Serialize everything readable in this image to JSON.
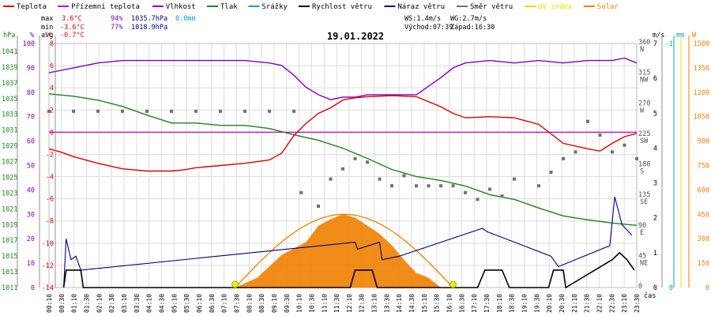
{
  "chart_data": {
    "type": "line",
    "title": "19.01.2022",
    "legend": [
      {
        "label": "Teplota",
        "color": "#e00000"
      },
      {
        "label": "Přízemní teplota",
        "color": "#c000c0"
      },
      {
        "label": "Vlhkost",
        "color": "#8000c0"
      },
      {
        "label": "Tlak",
        "color": "#208020"
      },
      {
        "label": "Srážky",
        "color": "#00a0d0"
      },
      {
        "label": "Rychlost větru",
        "color": "#000000"
      },
      {
        "label": "Náraz větru",
        "color": "#000080"
      },
      {
        "label": "Směr větru",
        "color": "#707070"
      },
      {
        "label": "UV index",
        "color": "#e0e000"
      },
      {
        "label": "Solar",
        "color": "#f08000"
      }
    ],
    "stats": {
      "max_label": "max",
      "max_temp": "3.6°C",
      "max_hum": "94%",
      "max_press": "1035.7hPa",
      "max_rain": "0.0mm",
      "min_label": "min",
      "min_temp": "-3.6°C",
      "min_hum": "77%",
      "min_press": "1018.9hPa",
      "avg_label": "avg",
      "avg_temp": "-0.7°C"
    },
    "wind_info": {
      "ws": "WS:1.4m/s",
      "wg": "WG:2.7m/s",
      "sunrise": "Východ:07:39",
      "sunset": "Západ:16:30"
    },
    "axes": {
      "left_units": [
        "hPa",
        "%",
        "°C"
      ],
      "right_units": [
        "m/s",
        "mm",
        "W"
      ],
      "xlabel": "čas",
      "hpa_ticks": [
        "1041",
        "1039",
        "1037",
        "1035",
        "1033",
        "1031",
        "1029",
        "1027",
        "1025",
        "1023",
        "1021",
        "1019",
        "1017",
        "1015",
        "1013",
        "1011"
      ],
      "pct_ticks": [
        "100",
        "90",
        "80",
        "70",
        "60",
        "50",
        "40",
        "30",
        "20",
        "10",
        "0"
      ],
      "temp_ticks": [
        "8",
        "6",
        "4",
        "2",
        "0",
        "-2",
        "-4",
        "-6",
        "-8",
        "-10",
        "-12",
        "-14"
      ],
      "dir_ticks": [
        {
          "deg": "360",
          "dir": "N"
        },
        {
          "deg": "315",
          "dir": "NW"
        },
        {
          "deg": "270",
          "dir": "W"
        },
        {
          "deg": "225",
          "dir": "SW"
        },
        {
          "deg": "180",
          "dir": "S"
        },
        {
          "deg": "135",
          "dir": "SE"
        },
        {
          "deg": "90",
          "dir": "E"
        },
        {
          "deg": "45",
          "dir": "NE"
        },
        {
          "deg": "0",
          "dir": ""
        }
      ],
      "ms_ticks": [
        "7",
        "6",
        "5",
        "4",
        "3",
        "2",
        "1",
        "0"
      ],
      "mm_ticks": [
        "-1",
        "0"
      ],
      "w_ticks": [
        "1500",
        "1350",
        "1200",
        "1050",
        "900",
        "750",
        "600",
        "450",
        "300",
        "150",
        "0"
      ],
      "x_ticks": [
        "00:10",
        "00:30",
        "01:10",
        "01:30",
        "02:10",
        "02:30",
        "03:10",
        "03:30",
        "04:10",
        "04:30",
        "05:10",
        "05:30",
        "06:10",
        "06:30",
        "07:10",
        "07:30",
        "08:10",
        "08:30",
        "09:10",
        "09:30",
        "10:10",
        "10:30",
        "11:10",
        "11:30",
        "12:10",
        "12:30",
        "13:10",
        "13:30",
        "14:10",
        "14:30",
        "15:10",
        "15:30",
        "16:10",
        "16:30",
        "17:10",
        "17:30",
        "18:10",
        "18:30",
        "19:10",
        "19:30",
        "20:10",
        "20:30",
        "21:10",
        "21:30",
        "22:10",
        "22:30",
        "23:10",
        "23:30"
      ]
    },
    "ranges": {
      "temp_c": [
        -14,
        8
      ],
      "hum_pct": [
        0,
        100
      ],
      "press_hpa": [
        1011,
        1042
      ],
      "wind_ms": [
        0,
        7
      ],
      "dir_deg": [
        0,
        360
      ],
      "solar_w": [
        0,
        1500
      ]
    },
    "series": [
      {
        "name": "Teplota",
        "unit": "°C",
        "x_h": [
          0,
          0.5,
          1,
          2,
          3,
          4,
          5,
          5.5,
          6,
          7,
          8,
          9,
          9.5,
          10,
          10.5,
          11,
          11.5,
          12,
          12.5,
          13,
          14,
          15,
          16,
          16.5,
          17,
          18,
          19,
          20,
          21,
          22,
          22.5,
          23,
          23.5,
          24
        ],
        "y": [
          -1.5,
          -1.8,
          -2.2,
          -2.8,
          -3.3,
          -3.5,
          -3.5,
          -3.4,
          -3.2,
          -3.0,
          -2.8,
          -2.5,
          -1.9,
          -0.3,
          0.8,
          1.7,
          2.2,
          2.9,
          3.1,
          3.2,
          3.3,
          3.2,
          2.3,
          1.7,
          1.3,
          1.4,
          1.3,
          0.7,
          -1.0,
          -1.5,
          -1.7,
          -1.0,
          -0.4,
          -0.1
        ]
      },
      {
        "name": "Vlhkost",
        "unit": "%",
        "x_h": [
          0,
          0.5,
          1,
          2,
          3,
          4,
          5,
          6,
          7,
          8,
          9,
          9.5,
          10,
          10.5,
          11,
          11.5,
          12,
          12.5,
          13,
          14,
          15,
          16,
          16.5,
          17,
          18,
          19,
          20,
          21,
          22,
          23,
          23.5,
          24
        ],
        "y": [
          88,
          89,
          90,
          92,
          93,
          93,
          93,
          93,
          93,
          93,
          92,
          91,
          87,
          82,
          79,
          77,
          78,
          78,
          79,
          79,
          79,
          86,
          90,
          92,
          93,
          92,
          93,
          92,
          93,
          93,
          94,
          92
        ]
      },
      {
        "name": "Tlak",
        "unit": "hPa",
        "x_h": [
          0,
          1,
          2,
          3,
          4,
          5,
          6,
          7,
          8,
          9,
          10,
          11,
          12,
          13,
          14,
          15,
          16,
          17,
          18,
          19,
          20,
          21,
          22,
          23,
          24
        ],
        "y": [
          1035.6,
          1035.3,
          1034.8,
          1034.0,
          1032.9,
          1031.9,
          1031.9,
          1031.6,
          1031.6,
          1031.2,
          1030.4,
          1029.7,
          1028.7,
          1027.4,
          1026.0,
          1025.1,
          1024.6,
          1023.9,
          1022.8,
          1022.2,
          1021.1,
          1020.1,
          1019.6,
          1019.2,
          1018.9
        ]
      },
      {
        "name": "Solar",
        "unit": "W",
        "x_h": [
          7.6,
          8.5,
          9.5,
          10.5,
          11,
          11.5,
          12,
          12.5,
          13,
          13.5,
          14,
          14.5,
          15,
          15.5,
          16
        ],
        "y": [
          0,
          60,
          200,
          280,
          380,
          420,
          450,
          430,
          380,
          330,
          260,
          170,
          90,
          60,
          0
        ]
      },
      {
        "name": "Rychlost větru",
        "unit": "m/s",
        "x_h": [
          0.6,
          0.7,
          1.3,
          1.4,
          12.3,
          12.5,
          13.2,
          13.4,
          17.5,
          17.8,
          18.5,
          18.8,
          20.4,
          20.6,
          21.0,
          21.1,
          23.0,
          23.3,
          23.6,
          23.9
        ],
        "y": [
          0,
          0.5,
          0.5,
          0,
          0,
          0.5,
          0.5,
          0,
          0,
          0.5,
          0.5,
          0,
          0,
          0.5,
          0.5,
          0,
          0.8,
          1.0,
          0.8,
          0.5
        ]
      },
      {
        "name": "Náraz větru",
        "unit": "m/s",
        "x_h": [
          0.6,
          0.7,
          0.9,
          1.1,
          1.3,
          12.5,
          12.6,
          13.5,
          13.6,
          14.3,
          17.7,
          17.9,
          20.5,
          20.8,
          22.9,
          23.1,
          23.4,
          23.8
        ],
        "y": [
          0,
          1.4,
          0.8,
          0.9,
          0.5,
          1.3,
          1.1,
          1.3,
          0.8,
          0.9,
          1.7,
          1.6,
          0.9,
          0.6,
          1.2,
          2.6,
          1.8,
          1.5
        ]
      },
      {
        "name": "Směr větru",
        "unit": "°",
        "x_h": [
          0,
          1,
          2,
          3,
          4,
          5,
          6,
          7,
          8,
          9,
          10,
          10.3,
          11,
          11.5,
          12,
          12.5,
          13,
          13.5,
          14,
          14.5,
          15,
          15.5,
          16,
          16.5,
          17,
          17.5,
          18,
          18.5,
          19,
          20,
          20.5,
          21,
          21.5,
          22,
          22.5,
          23,
          23.5,
          24
        ],
        "y": [
          260,
          260,
          260,
          260,
          260,
          260,
          260,
          260,
          260,
          260,
          260,
          140,
          120,
          160,
          175,
          190,
          185,
          160,
          150,
          165,
          150,
          150,
          150,
          150,
          140,
          130,
          145,
          135,
          160,
          150,
          170,
          190,
          200,
          245,
          225,
          200,
          210,
          190
        ]
      }
    ],
    "uv_markers_h": [
      7.6,
      16.5
    ],
    "reference_line": {
      "temp_c": 0,
      "color": "#c000c0"
    }
  }
}
